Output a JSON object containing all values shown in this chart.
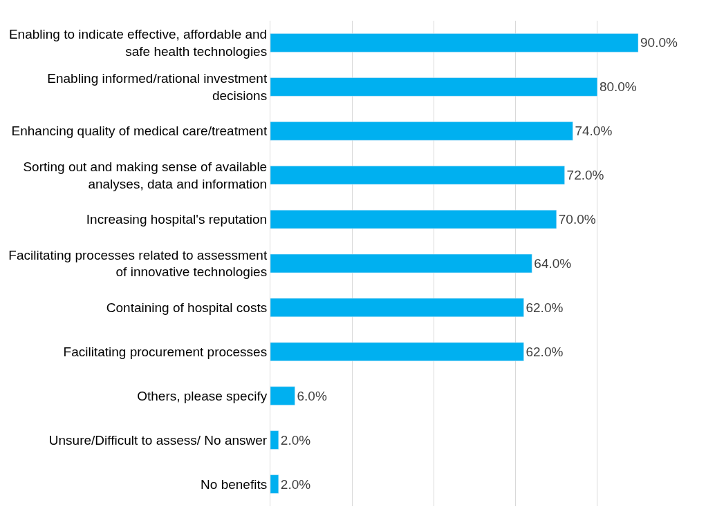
{
  "chart_data": {
    "type": "bar",
    "orientation": "horizontal",
    "categories": [
      "Enabling to indicate effective, affordable and safe health technologies",
      "Enabling informed/rational investment decisions",
      "Enhancing quality of medical care/treatment",
      "Sorting out and making sense of available analyses, data and information",
      "Increasing hospital's reputation",
      "Facilitating processes related to assessment of innovative technologies",
      "Containing of hospital costs",
      "Facilitating procurement processes",
      "Others, please specify",
      "Unsure/Difficult to assess/ No answer",
      "No benefits"
    ],
    "values": [
      90,
      80,
      74,
      72,
      70,
      64,
      62,
      62,
      6,
      2,
      2
    ],
    "value_labels": [
      "90.0%",
      "80.0%",
      "74.0%",
      "72.0%",
      "70.0%",
      "64.0%",
      "62.0%",
      "62.0%",
      "6.0%",
      "2.0%",
      "2.0%"
    ],
    "color": "#00b0f0",
    "grid": "x",
    "tick_labels": "y",
    "legend": false
  }
}
